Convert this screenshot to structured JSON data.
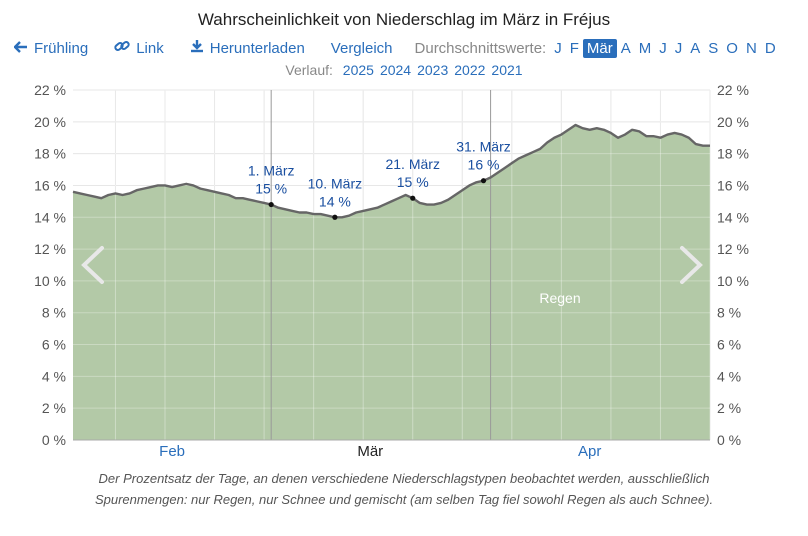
{
  "title": "Wahrscheinlichkeit von Niederschlag im März in Fréjus",
  "nav": {
    "prev_label": "Frühling",
    "link_label": "Link",
    "download_label": "Herunterladen",
    "compare_label": "Vergleich",
    "averages_label": "Durchschnittswerte:",
    "months": [
      "J",
      "F",
      "Mär",
      "A",
      "M",
      "J",
      "J",
      "A",
      "S",
      "O",
      "N",
      "D"
    ],
    "active_month_index": 2
  },
  "history": {
    "label": "Verlauf:",
    "years": [
      "2025",
      "2024",
      "2023",
      "2022",
      "2021"
    ]
  },
  "caption_line1": "Der Prozentsatz der Tage, an denen verschiedene Niederschlagstypen beobachtet werden, ausschließlich",
  "caption_line2": "Spurenmengen: nur Regen, nur Schnee und gemischt (am selben Tag fiel sowohl Regen als auch Schnee).",
  "colors": {
    "area": "#b3c9a7",
    "line": "#666666",
    "accent": "#2a6ebb",
    "grid": "#dddddd"
  },
  "chart_data": {
    "type": "area",
    "title": "Wahrscheinlichkeit von Niederschlag im März in Fréjus",
    "series_name": "Regen",
    "x_unit": "day_offset_from_1_Feb",
    "ylim": [
      0,
      22
    ],
    "y_ticks": [
      "0 %",
      "2 %",
      "4 %",
      "6 %",
      "8 %",
      "10 %",
      "12 %",
      "14 %",
      "16 %",
      "18 %",
      "20 %",
      "22 %"
    ],
    "month_labels": [
      {
        "label": "Feb",
        "day": 14
      },
      {
        "label": "Mär",
        "day": 42
      },
      {
        "label": "Apr",
        "day": 73
      }
    ],
    "month_boundaries": [
      28,
      59
    ],
    "values": [
      15.6,
      15.5,
      15.4,
      15.3,
      15.2,
      15.4,
      15.5,
      15.4,
      15.5,
      15.7,
      15.8,
      15.9,
      16.0,
      16.0,
      15.9,
      16.0,
      16.1,
      16.0,
      15.8,
      15.7,
      15.6,
      15.5,
      15.4,
      15.2,
      15.2,
      15.1,
      15.0,
      14.9,
      14.8,
      14.6,
      14.5,
      14.4,
      14.3,
      14.3,
      14.2,
      14.2,
      14.1,
      14.0,
      14.0,
      14.1,
      14.3,
      14.4,
      14.5,
      14.6,
      14.8,
      15.0,
      15.2,
      15.4,
      15.2,
      14.9,
      14.8,
      14.8,
      14.9,
      15.1,
      15.4,
      15.7,
      16.0,
      16.2,
      16.3,
      16.5,
      16.8,
      17.1,
      17.4,
      17.7,
      17.9,
      18.1,
      18.3,
      18.7,
      19.0,
      19.2,
      19.5,
      19.8,
      19.6,
      19.5,
      19.6,
      19.5,
      19.3,
      19.0,
      19.2,
      19.5,
      19.4,
      19.1,
      19.1,
      19.0,
      19.2,
      19.3,
      19.2,
      19.0,
      18.6,
      18.5,
      18.5
    ],
    "annotations": [
      {
        "day": 28,
        "date": "1. März",
        "value": "15 %"
      },
      {
        "day": 37,
        "date": "10. März",
        "value": "14 %"
      },
      {
        "day": 48,
        "date": "21. März",
        "value": "15 %"
      },
      {
        "day": 58,
        "date": "31. März",
        "value": "16 %"
      }
    ],
    "area_label": "Regen"
  }
}
